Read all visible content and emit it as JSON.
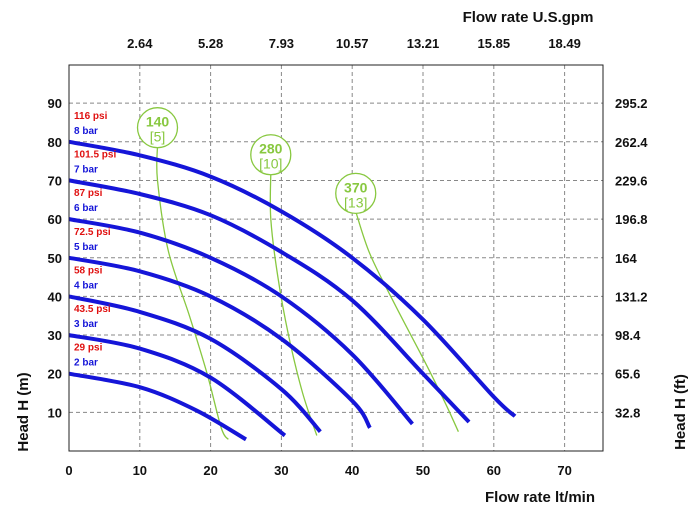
{
  "chart_data": {
    "type": "line",
    "xlabel": "Flow rate lt/min",
    "ylabel_left": "Head H (m)",
    "ylabel_right": "Head H (ft)",
    "x2label": "Flow rate U.S.gpm",
    "xlim": [
      0,
      80
    ],
    "ylim": [
      0,
      100
    ],
    "grid": true,
    "x_ticks": [
      {
        "value": 0,
        "label": "0"
      },
      {
        "value": 10,
        "label": "10"
      },
      {
        "value": 20,
        "label": "20"
      },
      {
        "value": 30,
        "label": "30"
      },
      {
        "value": 40,
        "label": "40"
      },
      {
        "value": 50,
        "label": "50"
      },
      {
        "value": 60,
        "label": "60"
      },
      {
        "value": 70,
        "label": "70"
      }
    ],
    "y_ticks": [
      {
        "value": 10,
        "label": "10"
      },
      {
        "value": 20,
        "label": "20"
      },
      {
        "value": 30,
        "label": "30"
      },
      {
        "value": 40,
        "label": "40"
      },
      {
        "value": 50,
        "label": "50"
      },
      {
        "value": 60,
        "label": "60"
      },
      {
        "value": 70,
        "label": "70"
      },
      {
        "value": 80,
        "label": "80"
      },
      {
        "value": 90,
        "label": "90"
      }
    ],
    "y_right_ticks": [
      {
        "value": 10,
        "label": "32.8"
      },
      {
        "value": 20,
        "label": "65.6"
      },
      {
        "value": 30,
        "label": "98.4"
      },
      {
        "value": 40,
        "label": "131.2"
      },
      {
        "value": 50,
        "label": "164"
      },
      {
        "value": 60,
        "label": "196.8"
      },
      {
        "value": 70,
        "label": "229.6"
      },
      {
        "value": 80,
        "label": "262.4"
      },
      {
        "value": 90,
        "label": "295.2"
      }
    ],
    "x2_ticks": [
      {
        "value": 10,
        "label": "2.64"
      },
      {
        "value": 20,
        "label": "5.28"
      },
      {
        "value": 30,
        "label": "7.93"
      },
      {
        "value": 40,
        "label": "10.57"
      },
      {
        "value": 50,
        "label": "13.21"
      },
      {
        "value": 60,
        "label": "15.85"
      },
      {
        "value": 70,
        "label": "18.49"
      }
    ],
    "pressure_series": [
      {
        "bar": "2 bar",
        "psi": "29 psi",
        "x": [
          0,
          10,
          18,
          25
        ],
        "y": [
          20,
          16.5,
          10.5,
          3
        ]
      },
      {
        "bar": "3 bar",
        "psi": "43.5 psi",
        "x": [
          0,
          10,
          20,
          30.5
        ],
        "y": [
          30,
          26.5,
          19,
          4
        ]
      },
      {
        "bar": "4 bar",
        "psi": "58 psi",
        "x": [
          0,
          10,
          20,
          30,
          35.5
        ],
        "y": [
          40,
          36,
          29,
          16,
          5
        ]
      },
      {
        "bar": "5 bar",
        "psi": "72.5 psi",
        "x": [
          0,
          10,
          20,
          30,
          40,
          42.5
        ],
        "y": [
          50,
          46.5,
          40,
          29,
          13,
          6
        ]
      },
      {
        "bar": "6 bar",
        "psi": "87 psi",
        "x": [
          0,
          10,
          20,
          30,
          40,
          48.5
        ],
        "y": [
          60,
          56.5,
          50,
          40,
          25,
          7
        ]
      },
      {
        "bar": "7 bar",
        "psi": "101.5 psi",
        "x": [
          0,
          10,
          20,
          30,
          40,
          50,
          56.5
        ],
        "y": [
          70,
          66.5,
          61,
          51.5,
          39,
          20,
          7.5
        ]
      },
      {
        "bar": "8 bar",
        "psi": "116 psi",
        "x": [
          0,
          10,
          20,
          30,
          40,
          50,
          60,
          63
        ],
        "y": [
          80,
          76.5,
          71,
          62,
          50,
          34,
          14,
          9
        ]
      }
    ],
    "stroke_curves": [
      {
        "value": "140",
        "unit_value": "[5]",
        "x": [
          12.5,
          12.5,
          14,
          17,
          19.5,
          21.5,
          22.5
        ],
        "y": [
          79,
          70,
          52,
          35,
          20,
          6,
          3
        ]
      },
      {
        "value": "280",
        "unit_value": "[10]",
        "x": [
          28.5,
          28.5,
          29.5,
          31,
          33,
          35
        ],
        "y": [
          72,
          60,
          45,
          30,
          15,
          4
        ]
      },
      {
        "value": "370",
        "unit_value": "[13]",
        "x": [
          40.5,
          42.5,
          46,
          50,
          53,
          55
        ],
        "y": [
          62,
          51,
          38,
          24,
          13,
          5
        ]
      }
    ],
    "colors": {
      "pressure_line": "#1515d8",
      "stroke_curve": "#88c840",
      "psi_label": "#e01010",
      "bar_label": "#1515d8",
      "grid": "#888888"
    }
  }
}
